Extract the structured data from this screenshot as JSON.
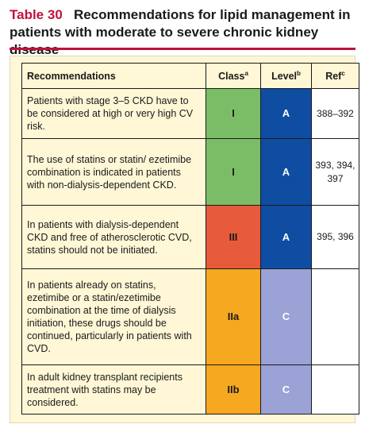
{
  "title": {
    "label": "Table 30",
    "text": "Recommendations for lipid management in patients with moderate to severe chronic kidney disease"
  },
  "colors": {
    "accent": "#c0123c",
    "table_bg": "#fff7d6",
    "class_I": "#7bbd67",
    "class_III": "#e85a3c",
    "class_IIa_IIb": "#f6a821",
    "level_A": "#0f4da2",
    "level_C": "#9aa2d6"
  },
  "table": {
    "headers": {
      "recommendations": "Recommendations",
      "class": "Class",
      "class_sup": "a",
      "level": "Level",
      "level_sup": "b",
      "ref": "Ref",
      "ref_sup": "c"
    },
    "rows": [
      {
        "text": "Patients with stage 3–5 CKD have to be considered at high or very high CV risk.",
        "class": "I",
        "level": "A",
        "ref": "388–392"
      },
      {
        "text": "The use of statins or statin/ ezetimibe combination is indicated in patients with non-dialysis-dependent CKD.",
        "class": "I",
        "level": "A",
        "ref": "393, 394, 397"
      },
      {
        "text": "In patients with dialysis-dependent CKD and free of atherosclerotic CVD, statins should not be initiated.",
        "class": "III",
        "level": "A",
        "ref": "395, 396"
      },
      {
        "text": "In patients already on statins, ezetimibe or a statin/ezetimibe combination at the time of dialysis initiation, these drugs should be continued, particularly in patients with CVD.",
        "class": "IIa",
        "level": "C",
        "ref": ""
      },
      {
        "text": "In adult kidney transplant recipients treatment with statins may be considered.",
        "class": "IIb",
        "level": "C",
        "ref": ""
      }
    ]
  }
}
